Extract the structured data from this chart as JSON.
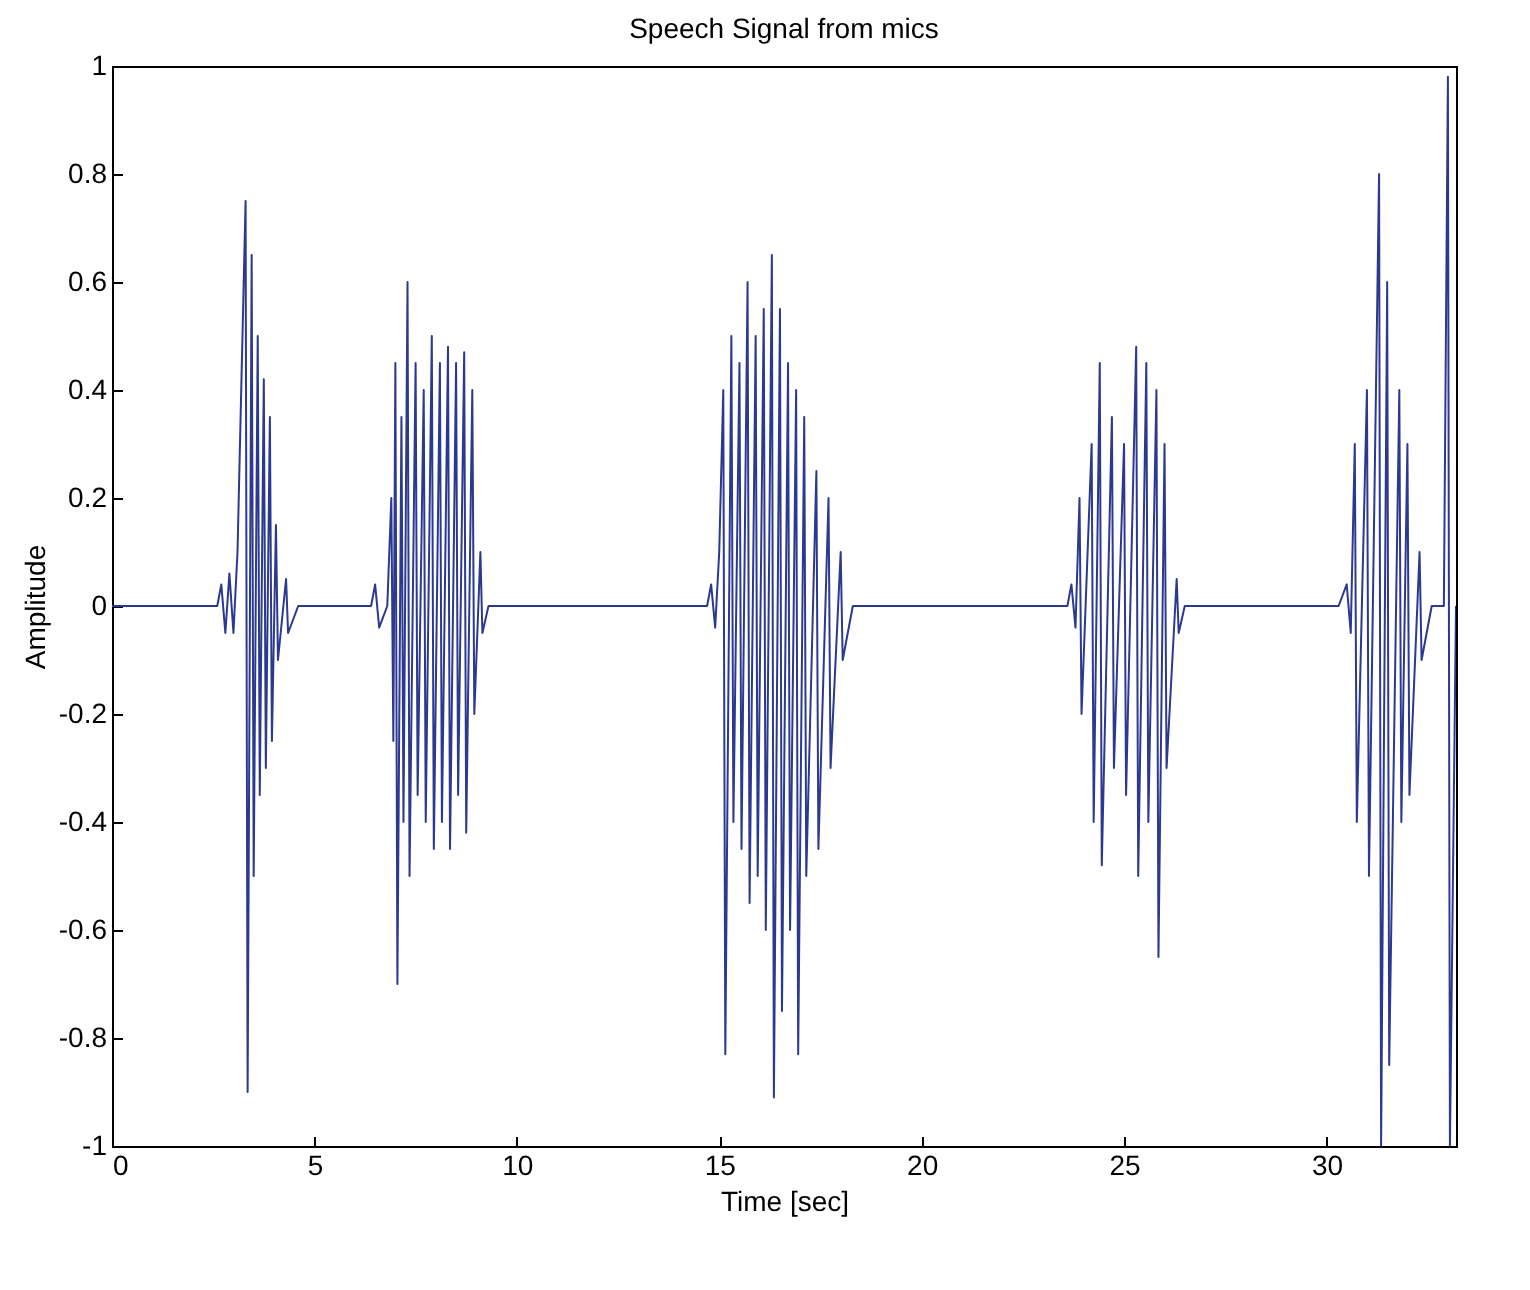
{
  "chart_data": {
    "type": "line",
    "title": "Speech Signal from mics",
    "xlabel": "Time [sec]",
    "ylabel": "Amplitude",
    "xlim": [
      0,
      33.2
    ],
    "xticks": [
      0,
      5,
      10,
      15,
      20,
      25,
      30
    ],
    "ylim": [
      -1,
      1
    ],
    "yticks": [
      -1,
      -0.8,
      -0.6,
      -0.4,
      -0.2,
      0,
      0.2,
      0.4,
      0.6,
      0.8,
      1
    ],
    "grid": false,
    "series": [
      {
        "color": "#2b3990",
        "x": [
          0,
          2.6,
          2.7,
          2.8,
          2.9,
          3.0,
          3.1,
          3.3,
          3.35,
          3.45,
          3.5,
          3.6,
          3.65,
          3.75,
          3.8,
          3.9,
          3.95,
          4.05,
          4.1,
          4.3,
          4.35,
          4.6,
          6.4,
          6.5,
          6.6,
          6.8,
          6.9,
          6.95,
          7.0,
          7.05,
          7.15,
          7.2,
          7.3,
          7.35,
          7.5,
          7.55,
          7.7,
          7.75,
          7.9,
          7.95,
          8.1,
          8.15,
          8.3,
          8.35,
          8.5,
          8.55,
          8.7,
          8.75,
          8.9,
          8.95,
          9.1,
          9.15,
          9.3,
          14.7,
          14.8,
          14.9,
          15.0,
          15.1,
          15.15,
          15.3,
          15.35,
          15.5,
          15.55,
          15.7,
          15.75,
          15.9,
          15.95,
          16.1,
          16.15,
          16.3,
          16.35,
          16.5,
          16.55,
          16.7,
          16.75,
          16.9,
          16.95,
          17.1,
          17.15,
          17.4,
          17.45,
          17.7,
          17.75,
          18.0,
          18.05,
          18.3,
          23.6,
          23.7,
          23.8,
          23.9,
          23.95,
          24.2,
          24.25,
          24.4,
          24.45,
          24.7,
          24.75,
          25.0,
          25.05,
          25.3,
          25.35,
          25.55,
          25.6,
          25.8,
          25.85,
          26.0,
          26.05,
          26.3,
          26.35,
          26.5,
          30.3,
          30.5,
          30.6,
          30.7,
          30.75,
          31.0,
          31.05,
          31.3,
          31.35,
          31.5,
          31.55,
          31.8,
          31.85,
          32.0,
          32.05,
          32.3,
          32.35,
          32.6,
          32.9,
          33.0,
          33.05,
          33.2
        ],
        "values": [
          0,
          0,
          0.04,
          -0.05,
          0.06,
          -0.05,
          0.1,
          0.75,
          -0.9,
          0.65,
          -0.5,
          0.5,
          -0.35,
          0.42,
          -0.3,
          0.35,
          -0.25,
          0.15,
          -0.1,
          0.05,
          -0.05,
          0,
          0,
          0.04,
          -0.04,
          0,
          0.2,
          -0.25,
          0.45,
          -0.7,
          0.35,
          -0.4,
          0.6,
          -0.5,
          0.45,
          -0.35,
          0.4,
          -0.4,
          0.5,
          -0.45,
          0.45,
          -0.4,
          0.48,
          -0.45,
          0.45,
          -0.35,
          0.47,
          -0.42,
          0.4,
          -0.2,
          0.1,
          -0.05,
          0,
          0,
          0.04,
          -0.04,
          0.1,
          0.4,
          -0.83,
          0.5,
          -0.4,
          0.45,
          -0.45,
          0.6,
          -0.55,
          0.5,
          -0.5,
          0.55,
          -0.6,
          0.65,
          -0.91,
          0.55,
          -0.75,
          0.45,
          -0.6,
          0.4,
          -0.83,
          0.35,
          -0.5,
          0.25,
          -0.45,
          0.2,
          -0.3,
          0.1,
          -0.1,
          0,
          0,
          0.04,
          -0.04,
          0.2,
          -0.2,
          0.3,
          -0.4,
          0.45,
          -0.48,
          0.35,
          -0.3,
          0.3,
          -0.35,
          0.48,
          -0.5,
          0.45,
          -0.4,
          0.4,
          -0.65,
          0.3,
          -0.3,
          0.05,
          -0.05,
          0,
          0,
          0.04,
          -0.05,
          0.3,
          -0.4,
          0.4,
          -0.5,
          0.8,
          -1,
          0.6,
          -0.85,
          0.4,
          -0.4,
          0.3,
          -0.35,
          0.1,
          -0.1,
          0,
          0,
          0.98,
          -1,
          0
        ]
      }
    ]
  }
}
